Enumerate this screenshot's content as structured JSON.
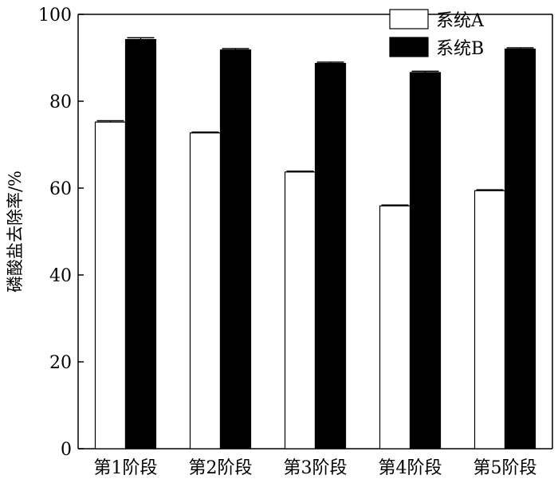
{
  "chart_data": {
    "type": "bar",
    "title": "",
    "xlabel": "",
    "ylabel": "磷酸盐去除率/%",
    "ylim": [
      0,
      100
    ],
    "yticks": [
      0,
      20,
      40,
      60,
      80,
      100
    ],
    "categories": [
      "第1阶段",
      "第2阶段",
      "第3阶段",
      "第4阶段",
      "第5阶段"
    ],
    "series": [
      {
        "name": "系统A",
        "fill": "#ffffff",
        "values": [
          75.2,
          72.7,
          63.7,
          55.9,
          59.4
        ],
        "errors": [
          0.3,
          0.2,
          0.2,
          0.2,
          0.2
        ]
      },
      {
        "name": "系统B",
        "fill": "#000000",
        "values": [
          94.2,
          91.8,
          88.7,
          86.6,
          92.0
        ],
        "errors": [
          0.4,
          0.3,
          0.3,
          0.3,
          0.3
        ]
      }
    ],
    "legend": {
      "position": "top-right"
    },
    "grid": false
  }
}
